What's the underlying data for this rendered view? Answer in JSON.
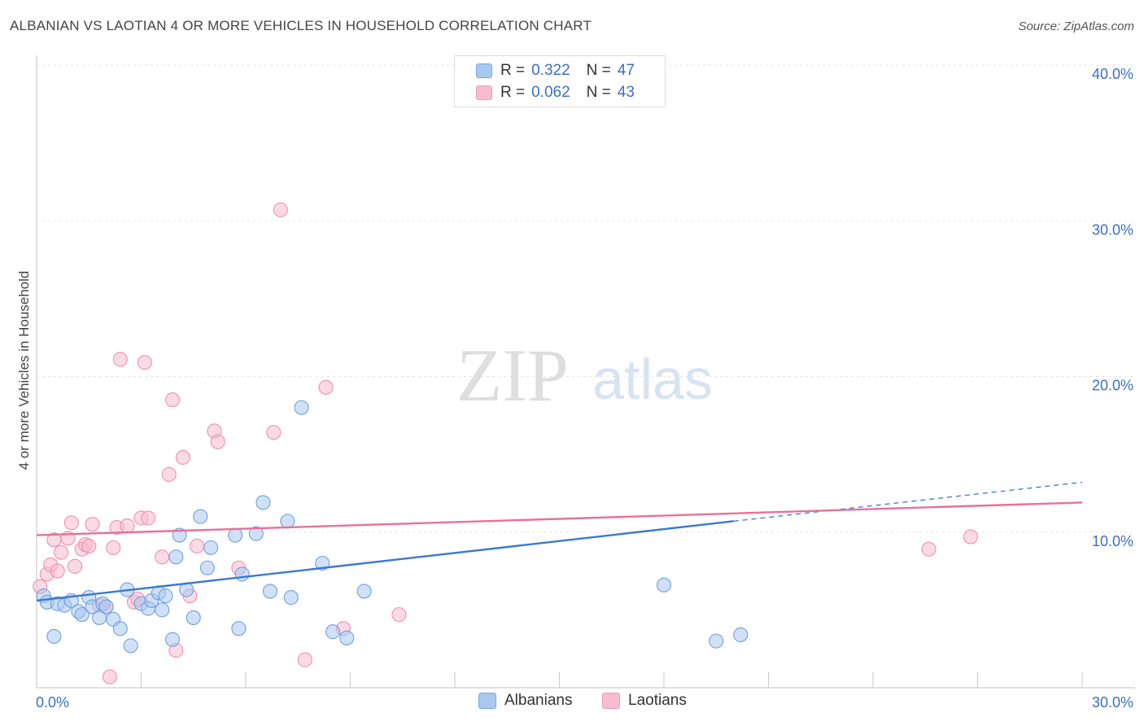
{
  "title": "ALBANIAN VS LAOTIAN 4 OR MORE VEHICLES IN HOUSEHOLD CORRELATION CHART",
  "source": "Source: ZipAtlas.com",
  "watermark": {
    "zip": "ZIP",
    "atlas": "atlas"
  },
  "legend": {
    "rows": [
      {
        "r_label": "R =",
        "r_value": "0.322",
        "n_label": "N =",
        "n_value": "47",
        "color": "#a9c8f0"
      },
      {
        "r_label": "R =",
        "r_value": "0.062",
        "n_label": "N =",
        "n_value": "43",
        "color": "#f7bcd0"
      }
    ]
  },
  "bottom_legend": [
    {
      "label": "Albanians",
      "color": "#a9c8f0"
    },
    {
      "label": "Laotians",
      "color": "#f7bcd0"
    }
  ],
  "chart_data": {
    "type": "scatter",
    "title": "ALBANIAN VS LAOTIAN 4 OR MORE VEHICLES IN HOUSEHOLD CORRELATION CHART",
    "xlabel": "",
    "ylabel": "4 or more Vehicles in Household",
    "xlim": [
      0,
      30
    ],
    "ylim": [
      0,
      40
    ],
    "x_tick_labels": [
      "0.0%",
      "30.0%"
    ],
    "y_ticks": [
      10,
      20,
      30,
      40
    ],
    "y_tick_labels": [
      "10.0%",
      "20.0%",
      "30.0%",
      "40.0%"
    ],
    "grid": true,
    "series": [
      {
        "name": "Albanians",
        "color": "#6f9fe0",
        "fill": "#a9c8f0",
        "trend_color": "#3a78d4",
        "trend": {
          "x0": 0,
          "y0": 5.6,
          "x1": 20.0,
          "y1": 10.7,
          "dash_to_x": 30,
          "dash_to_y": 13.2
        },
        "points": [
          [
            0.2,
            5.9
          ],
          [
            0.3,
            5.5
          ],
          [
            0.5,
            3.3
          ],
          [
            0.6,
            5.4
          ],
          [
            0.8,
            5.3
          ],
          [
            1.0,
            5.6
          ],
          [
            1.2,
            4.9
          ],
          [
            1.3,
            4.7
          ],
          [
            1.5,
            5.8
          ],
          [
            1.6,
            5.2
          ],
          [
            1.8,
            4.5
          ],
          [
            1.9,
            5.4
          ],
          [
            2.0,
            5.2
          ],
          [
            2.2,
            4.4
          ],
          [
            2.4,
            3.8
          ],
          [
            2.6,
            6.3
          ],
          [
            2.7,
            2.7
          ],
          [
            3.0,
            5.4
          ],
          [
            3.2,
            5.1
          ],
          [
            3.3,
            5.6
          ],
          [
            3.5,
            6.1
          ],
          [
            3.6,
            5.0
          ],
          [
            3.7,
            5.9
          ],
          [
            3.9,
            3.1
          ],
          [
            4.0,
            8.4
          ],
          [
            4.1,
            9.8
          ],
          [
            4.3,
            6.3
          ],
          [
            4.5,
            4.5
          ],
          [
            4.7,
            11.0
          ],
          [
            4.9,
            7.7
          ],
          [
            5.0,
            9.0
          ],
          [
            5.7,
            9.8
          ],
          [
            5.8,
            3.8
          ],
          [
            5.9,
            7.3
          ],
          [
            6.3,
            9.9
          ],
          [
            6.5,
            11.9
          ],
          [
            6.7,
            6.2
          ],
          [
            7.2,
            10.7
          ],
          [
            7.3,
            5.8
          ],
          [
            7.6,
            18.0
          ],
          [
            8.2,
            8.0
          ],
          [
            8.5,
            3.6
          ],
          [
            8.9,
            3.2
          ],
          [
            9.4,
            6.2
          ],
          [
            18.0,
            6.6
          ],
          [
            19.5,
            3.0
          ],
          [
            20.2,
            3.4
          ]
        ]
      },
      {
        "name": "Laotians",
        "color": "#ef8fb0",
        "fill": "#f7bcd0",
        "trend_color": "#e8709a",
        "trend": {
          "x0": 0,
          "y0": 9.8,
          "x1": 30,
          "y1": 11.9
        },
        "points": [
          [
            0.1,
            6.5
          ],
          [
            0.3,
            7.3
          ],
          [
            0.4,
            7.9
          ],
          [
            0.5,
            9.5
          ],
          [
            0.6,
            7.5
          ],
          [
            0.7,
            8.7
          ],
          [
            0.9,
            9.6
          ],
          [
            1.0,
            10.6
          ],
          [
            1.1,
            7.8
          ],
          [
            1.3,
            8.9
          ],
          [
            1.4,
            9.2
          ],
          [
            1.5,
            9.1
          ],
          [
            1.6,
            10.5
          ],
          [
            1.8,
            5.3
          ],
          [
            2.0,
            5.2
          ],
          [
            2.1,
            0.7
          ],
          [
            2.2,
            9.0
          ],
          [
            2.3,
            10.3
          ],
          [
            2.4,
            21.1
          ],
          [
            2.6,
            10.4
          ],
          [
            2.8,
            5.5
          ],
          [
            2.9,
            5.7
          ],
          [
            3.0,
            10.9
          ],
          [
            3.1,
            20.9
          ],
          [
            3.2,
            10.9
          ],
          [
            3.6,
            8.4
          ],
          [
            3.8,
            13.7
          ],
          [
            3.9,
            18.5
          ],
          [
            4.0,
            2.4
          ],
          [
            4.2,
            14.8
          ],
          [
            4.4,
            5.9
          ],
          [
            4.6,
            9.1
          ],
          [
            5.1,
            16.5
          ],
          [
            5.2,
            15.8
          ],
          [
            5.8,
            7.7
          ],
          [
            6.8,
            16.4
          ],
          [
            7.0,
            30.7
          ],
          [
            7.7,
            1.8
          ],
          [
            8.3,
            19.3
          ],
          [
            8.8,
            3.8
          ],
          [
            10.4,
            4.7
          ],
          [
            25.6,
            8.9
          ],
          [
            26.8,
            9.7
          ]
        ]
      }
    ]
  }
}
